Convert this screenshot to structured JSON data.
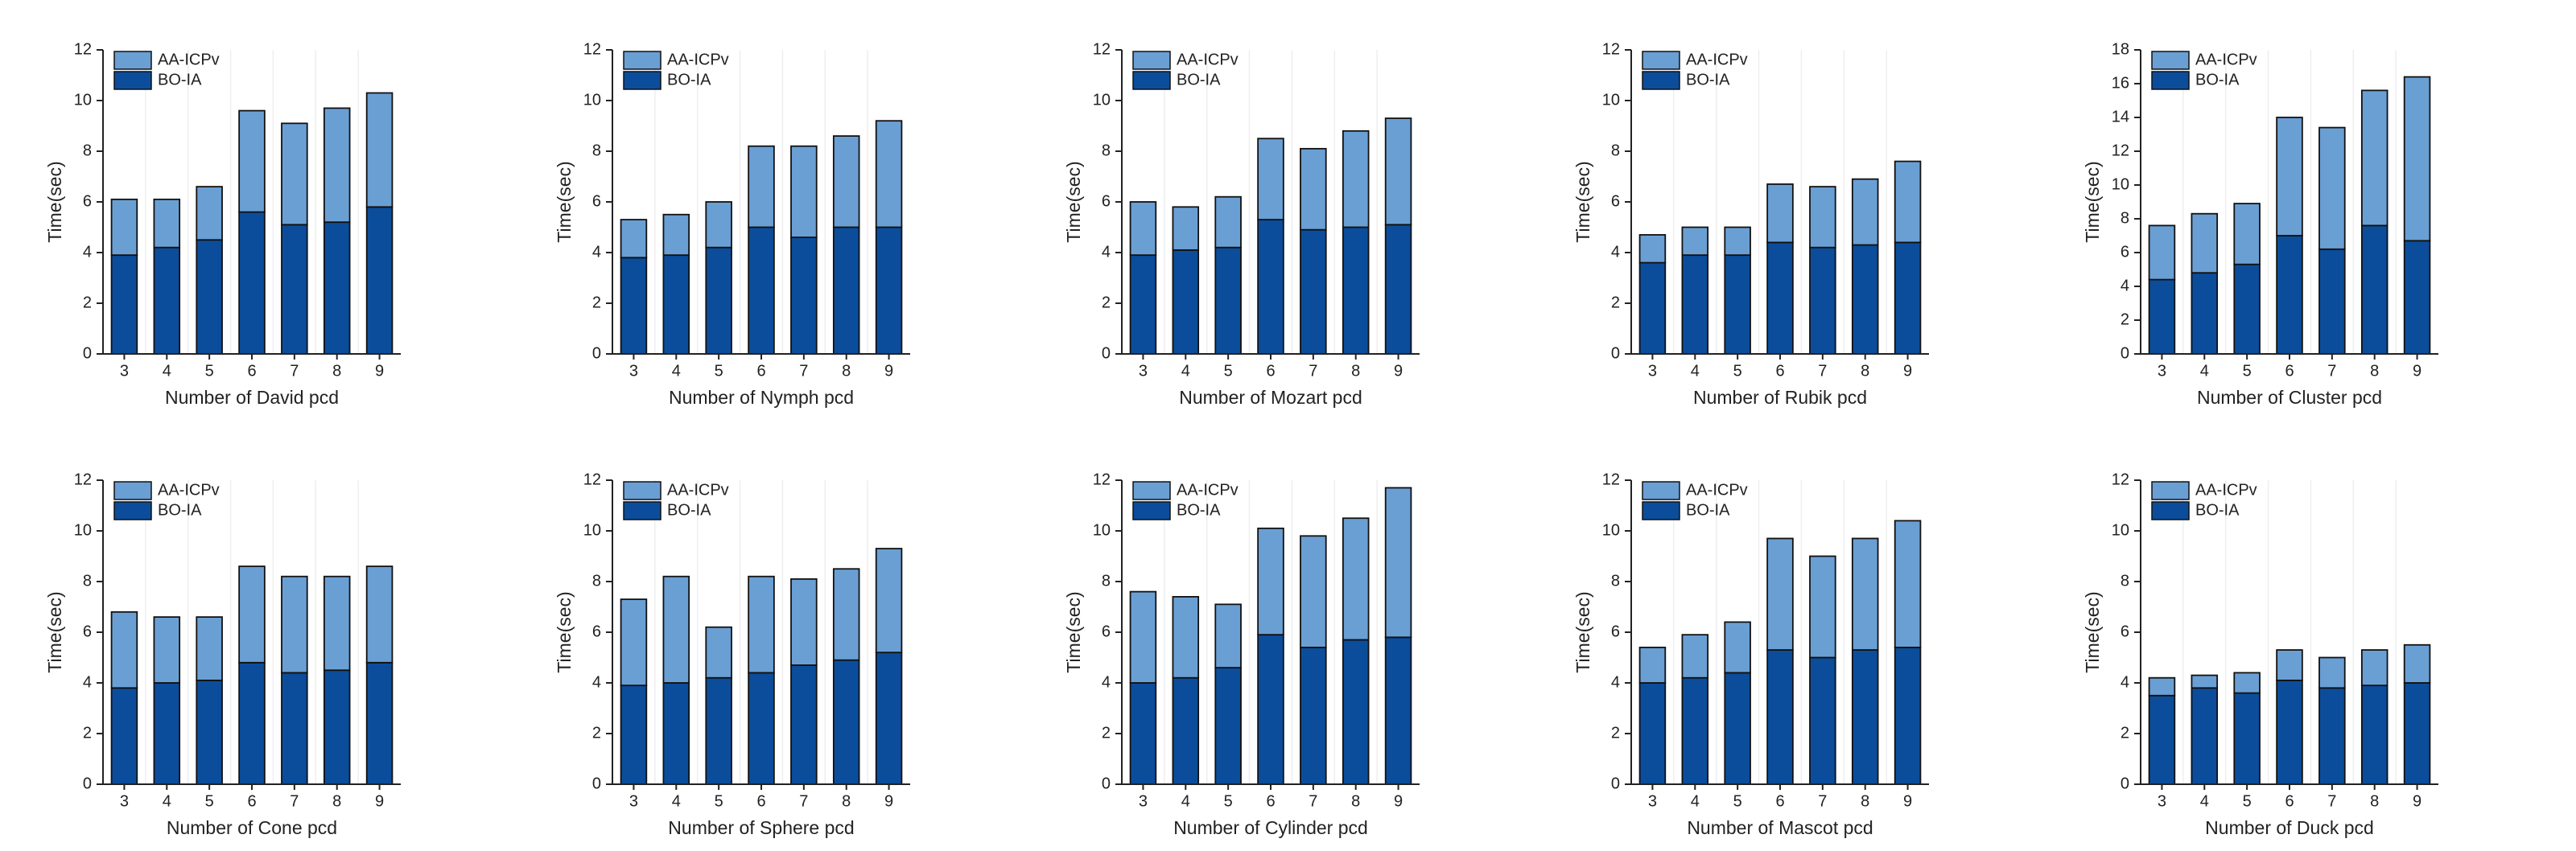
{
  "chart_data": [
    {
      "type": "bar",
      "stacked": true,
      "xlabel": "Number of David pcd",
      "ylabel": "Time(sec)",
      "categories": [
        3,
        4,
        5,
        6,
        7,
        8,
        9
      ],
      "ylim": [
        0,
        12
      ],
      "yticks": [
        0,
        2,
        4,
        6,
        8,
        10,
        12
      ],
      "grid": true,
      "series": [
        {
          "name": "BO-IA",
          "color": "#0b4d9b",
          "values": [
            3.9,
            4.2,
            4.5,
            5.6,
            5.1,
            5.2,
            5.8
          ]
        },
        {
          "name": "AA-ICPv",
          "color": "#6a9fd4",
          "values": [
            2.2,
            1.9,
            2.1,
            4.0,
            4.0,
            4.5,
            4.5
          ]
        }
      ]
    },
    {
      "type": "bar",
      "stacked": true,
      "xlabel": "Number of Nymph pcd",
      "ylabel": "Time(sec)",
      "categories": [
        3,
        4,
        5,
        6,
        7,
        8,
        9
      ],
      "ylim": [
        0,
        12
      ],
      "yticks": [
        0,
        2,
        4,
        6,
        8,
        10,
        12
      ],
      "grid": true,
      "series": [
        {
          "name": "BO-IA",
          "color": "#0b4d9b",
          "values": [
            3.8,
            3.9,
            4.2,
            5.0,
            4.6,
            5.0,
            5.0
          ]
        },
        {
          "name": "AA-ICPv",
          "color": "#6a9fd4",
          "values": [
            1.5,
            1.6,
            1.8,
            3.2,
            3.6,
            3.6,
            4.2
          ]
        }
      ]
    },
    {
      "type": "bar",
      "stacked": true,
      "xlabel": "Number of Mozart pcd",
      "ylabel": "Time(sec)",
      "categories": [
        3,
        4,
        5,
        6,
        7,
        8,
        9
      ],
      "ylim": [
        0,
        12
      ],
      "yticks": [
        0,
        2,
        4,
        6,
        8,
        10,
        12
      ],
      "grid": true,
      "series": [
        {
          "name": "BO-IA",
          "color": "#0b4d9b",
          "values": [
            3.9,
            4.1,
            4.2,
            5.3,
            4.9,
            5.0,
            5.1
          ]
        },
        {
          "name": "AA-ICPv",
          "color": "#6a9fd4",
          "values": [
            2.1,
            1.7,
            2.0,
            3.2,
            3.2,
            3.8,
            4.2
          ]
        }
      ]
    },
    {
      "type": "bar",
      "stacked": true,
      "xlabel": "Number of Rubik pcd",
      "ylabel": "Time(sec)",
      "categories": [
        3,
        4,
        5,
        6,
        7,
        8,
        9
      ],
      "ylim": [
        0,
        12
      ],
      "yticks": [
        0,
        2,
        4,
        6,
        8,
        10,
        12
      ],
      "grid": true,
      "series": [
        {
          "name": "BO-IA",
          "color": "#0b4d9b",
          "values": [
            3.6,
            3.9,
            3.9,
            4.4,
            4.2,
            4.3,
            4.4
          ]
        },
        {
          "name": "AA-ICPv",
          "color": "#6a9fd4",
          "values": [
            1.1,
            1.1,
            1.1,
            2.3,
            2.4,
            2.6,
            3.2
          ]
        }
      ]
    },
    {
      "type": "bar",
      "stacked": true,
      "xlabel": "Number of Cluster pcd",
      "ylabel": "Time(sec)",
      "categories": [
        3,
        4,
        5,
        6,
        7,
        8,
        9
      ],
      "ylim": [
        0,
        18
      ],
      "yticks": [
        0,
        2,
        4,
        6,
        8,
        10,
        12,
        14,
        16,
        18
      ],
      "grid": true,
      "series": [
        {
          "name": "BO-IA",
          "color": "#0b4d9b",
          "values": [
            4.4,
            4.8,
            5.3,
            7.0,
            6.2,
            7.6,
            6.7
          ]
        },
        {
          "name": "AA-ICPv",
          "color": "#6a9fd4",
          "values": [
            3.2,
            3.5,
            3.6,
            7.0,
            7.2,
            8.0,
            9.7
          ]
        }
      ]
    },
    {
      "type": "bar",
      "stacked": true,
      "xlabel": "Number of Cone pcd",
      "ylabel": "Time(sec)",
      "categories": [
        3,
        4,
        5,
        6,
        7,
        8,
        9
      ],
      "ylim": [
        0,
        12
      ],
      "yticks": [
        0,
        2,
        4,
        6,
        8,
        10,
        12
      ],
      "grid": true,
      "series": [
        {
          "name": "BO-IA",
          "color": "#0b4d9b",
          "values": [
            3.8,
            4.0,
            4.1,
            4.8,
            4.4,
            4.5,
            4.8
          ]
        },
        {
          "name": "AA-ICPv",
          "color": "#6a9fd4",
          "values": [
            3.0,
            2.6,
            2.5,
            3.8,
            3.8,
            3.7,
            3.8
          ]
        }
      ]
    },
    {
      "type": "bar",
      "stacked": true,
      "xlabel": "Number of Sphere pcd",
      "ylabel": "Time(sec)",
      "categories": [
        3,
        4,
        5,
        6,
        7,
        8,
        9
      ],
      "ylim": [
        0,
        12
      ],
      "yticks": [
        0,
        2,
        4,
        6,
        8,
        10,
        12
      ],
      "grid": true,
      "series": [
        {
          "name": "BO-IA",
          "color": "#0b4d9b",
          "values": [
            3.9,
            4.0,
            4.2,
            4.4,
            4.7,
            4.9,
            5.2
          ]
        },
        {
          "name": "AA-ICPv",
          "color": "#6a9fd4",
          "values": [
            3.4,
            4.2,
            2.0,
            3.8,
            3.4,
            3.6,
            4.1
          ]
        }
      ]
    },
    {
      "type": "bar",
      "stacked": true,
      "xlabel": "Number of Cylinder pcd",
      "ylabel": "Time(sec)",
      "categories": [
        3,
        4,
        5,
        6,
        7,
        8,
        9
      ],
      "ylim": [
        0,
        12
      ],
      "yticks": [
        0,
        2,
        4,
        6,
        8,
        10,
        12
      ],
      "grid": true,
      "series": [
        {
          "name": "BO-IA",
          "color": "#0b4d9b",
          "values": [
            4.0,
            4.2,
            4.6,
            5.9,
            5.4,
            5.7,
            5.8
          ]
        },
        {
          "name": "AA-ICPv",
          "color": "#6a9fd4",
          "values": [
            3.6,
            3.2,
            2.5,
            4.2,
            4.4,
            4.8,
            5.9
          ]
        }
      ]
    },
    {
      "type": "bar",
      "stacked": true,
      "xlabel": "Number of Mascot pcd",
      "ylabel": "Time(sec)",
      "categories": [
        3,
        4,
        5,
        6,
        7,
        8,
        9
      ],
      "ylim": [
        0,
        12
      ],
      "yticks": [
        0,
        2,
        4,
        6,
        8,
        10,
        12
      ],
      "grid": true,
      "series": [
        {
          "name": "BO-IA",
          "color": "#0b4d9b",
          "values": [
            4.0,
            4.2,
            4.4,
            5.3,
            5.0,
            5.3,
            5.4
          ]
        },
        {
          "name": "AA-ICPv",
          "color": "#6a9fd4",
          "values": [
            1.4,
            1.7,
            2.0,
            4.4,
            4.0,
            4.4,
            5.0
          ]
        }
      ]
    },
    {
      "type": "bar",
      "stacked": true,
      "xlabel": "Number of Duck pcd",
      "ylabel": "Time(sec)",
      "categories": [
        3,
        4,
        5,
        6,
        7,
        8,
        9
      ],
      "ylim": [
        0,
        12
      ],
      "yticks": [
        0,
        2,
        4,
        6,
        8,
        10,
        12
      ],
      "grid": true,
      "series": [
        {
          "name": "BO-IA",
          "color": "#0b4d9b",
          "values": [
            3.5,
            3.8,
            3.6,
            4.1,
            3.8,
            3.9,
            4.0
          ]
        },
        {
          "name": "AA-ICPv",
          "color": "#6a9fd4",
          "values": [
            0.7,
            0.5,
            0.8,
            1.2,
            1.2,
            1.4,
            1.5
          ]
        }
      ]
    }
  ]
}
